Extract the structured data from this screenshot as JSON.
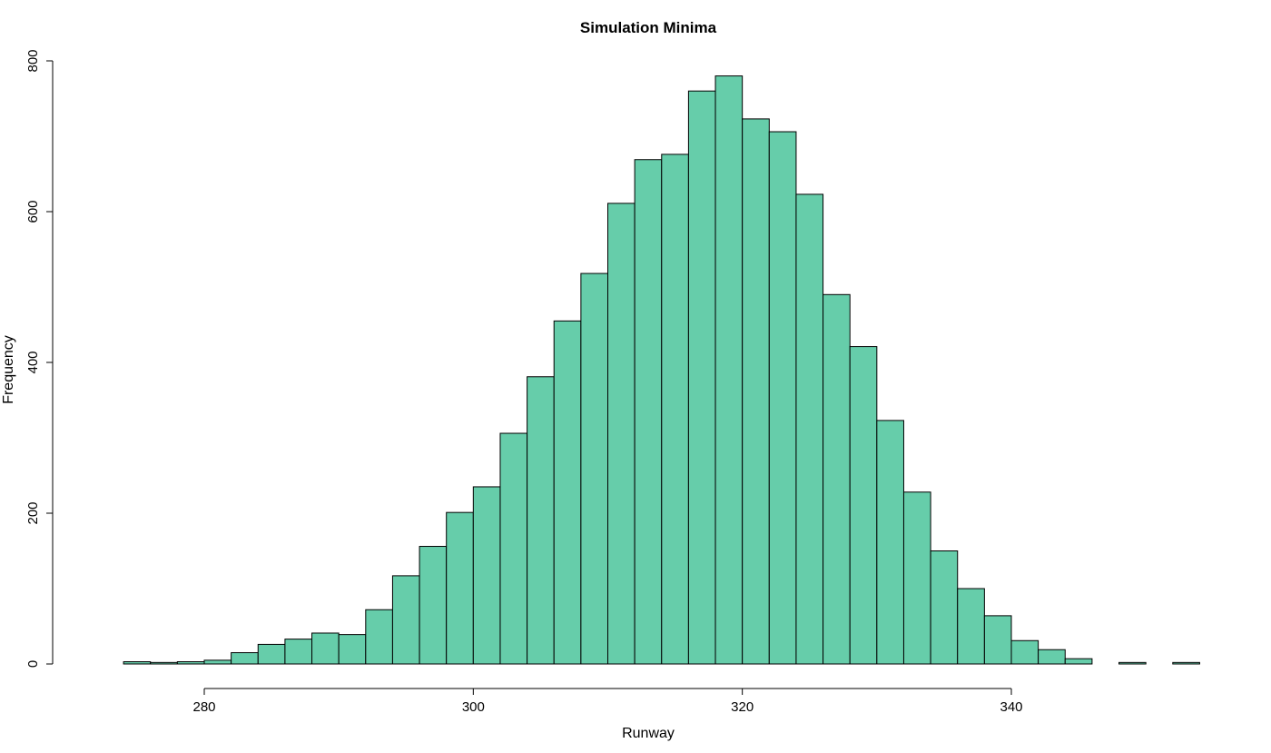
{
  "chart_data": {
    "type": "bar",
    "title": "Simulation Minima",
    "xlabel": "Runway",
    "ylabel": "Frequency",
    "bin_width": 2,
    "bin_start": 272,
    "bin_end": 354,
    "values": [
      0,
      3,
      2,
      3,
      5,
      15,
      26,
      33,
      41,
      39,
      72,
      117,
      156,
      201,
      235,
      306,
      381,
      455,
      518,
      611,
      669,
      676,
      760,
      780,
      723,
      706,
      623,
      490,
      421,
      323,
      228,
      150,
      100,
      64,
      31,
      19,
      7,
      0,
      2,
      0,
      2
    ],
    "xlim": [
      272,
      354
    ],
    "ylim": [
      0,
      800
    ],
    "x_ticks": [
      280,
      300,
      320,
      340
    ],
    "y_ticks": [
      0,
      200,
      400,
      600,
      800
    ],
    "bar_color": "#66CDAA",
    "grid": false
  }
}
